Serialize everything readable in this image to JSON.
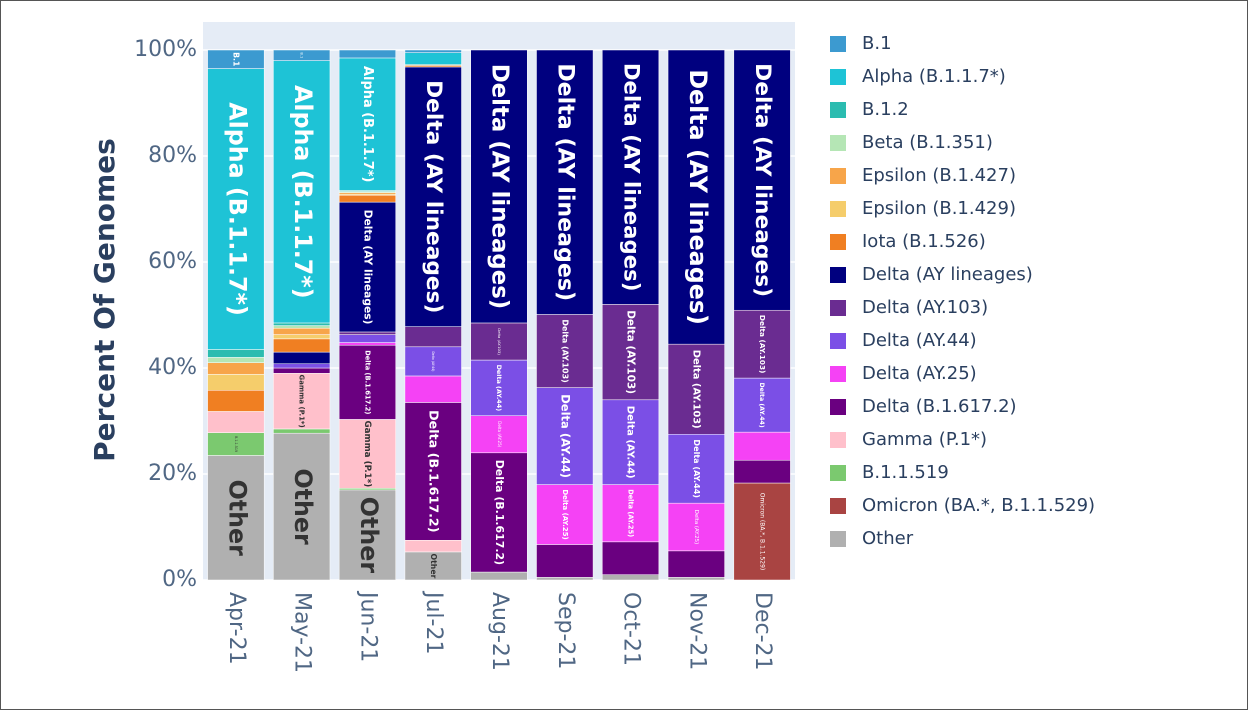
{
  "chart_data": {
    "type": "stacked_bar",
    "y_label": "Percent Of Genomes",
    "categories": [
      "Apr-21",
      "May-21",
      "Jun-21",
      "Jul-21",
      "Aug-21",
      "Sep-21",
      "Oct-21",
      "Nov-21",
      "Dec-21"
    ],
    "ylim": [
      0,
      100
    ],
    "yticks": [
      {
        "value": 0,
        "label": "0%"
      },
      {
        "value": 20,
        "label": "20%"
      },
      {
        "value": 40,
        "label": "40%"
      },
      {
        "value": 60,
        "label": "60%"
      },
      {
        "value": 80,
        "label": "80%"
      },
      {
        "value": 100,
        "label": "100%"
      }
    ],
    "grid": true,
    "legend": "right",
    "series": [
      {
        "name": "B.1",
        "color": "#3c9ad0",
        "values": [
          3.5,
          2,
          1.5,
          0.5,
          0,
          0,
          0,
          0,
          0
        ]
      },
      {
        "name": "Alpha (B.1.1.7*)",
        "color": "#1ec3d6",
        "values": [
          53,
          49.5,
          25,
          2.2,
          0,
          0,
          0,
          0,
          0
        ]
      },
      {
        "name": "B.1.2",
        "color": "#2bbcb0",
        "values": [
          1.5,
          0.5,
          0.2,
          0.2,
          0,
          0,
          0,
          0,
          0
        ]
      },
      {
        "name": "Beta (B.1.351)",
        "color": "#b5e6b5",
        "values": [
          1,
          0.5,
          0.2,
          0,
          0,
          0,
          0,
          0,
          0
        ]
      },
      {
        "name": "Epsilon (B.1.427)",
        "color": "#f7a54a",
        "values": [
          2.2,
          1.2,
          0.3,
          0,
          0,
          0,
          0,
          0,
          0
        ]
      },
      {
        "name": "Epsilon (B.1.429)",
        "color": "#f5cd6b",
        "values": [
          3,
          0.8,
          0.2,
          0,
          0,
          0,
          0,
          0,
          0
        ]
      },
      {
        "name": "Iota (B.1.526)",
        "color": "#f07f22",
        "values": [
          4,
          2.5,
          1.3,
          0.3,
          0,
          0,
          0,
          0,
          0
        ]
      },
      {
        "name": "Delta (AY lineages)",
        "color": "#00007f",
        "values": [
          0,
          2.2,
          24.5,
          49,
          51.5,
          49.9,
          48,
          55.5,
          49.1
        ]
      },
      {
        "name": "Delta (AY.103)",
        "color": "#6a2c91",
        "values": [
          0,
          0,
          0.5,
          3.8,
          7,
          13.8,
          18,
          17,
          12.8
        ]
      },
      {
        "name": "Delta (AY.44)",
        "color": "#7b4fe6",
        "values": [
          0,
          0.8,
          1.5,
          5.5,
          10.5,
          18.3,
          16,
          13,
          10.2
        ]
      },
      {
        "name": "Delta (AY.25)",
        "color": "#f542f5",
        "values": [
          0,
          0,
          0.5,
          5,
          7,
          11.3,
          10.8,
          9,
          5.3
        ]
      },
      {
        "name": "Delta (B.1.617.2)",
        "color": "#6a0080",
        "values": [
          0,
          1,
          14,
          26,
          22.5,
          6.2,
          6.2,
          5,
          4.3
        ]
      },
      {
        "name": "Gamma (P.1*)",
        "color": "#ffc0cb",
        "values": [
          4,
          10.5,
          13,
          2.2,
          0,
          0,
          0,
          0,
          0
        ]
      },
      {
        "name": "B.1.1.519",
        "color": "#7bc96f",
        "values": [
          4.3,
          0.8,
          0.3,
          0,
          0,
          0,
          0,
          0,
          0
        ]
      },
      {
        "name": "Omicron (BA.*, B.1.1.529)",
        "color": "#a94442",
        "values": [
          0,
          0,
          0,
          0,
          0,
          0,
          0,
          0,
          18.3
        ]
      },
      {
        "name": "Other",
        "color": "#b0b0b0",
        "values": [
          23.5,
          27.7,
          17,
          5.3,
          1.5,
          0.5,
          1,
          0.5,
          0
        ]
      }
    ]
  }
}
